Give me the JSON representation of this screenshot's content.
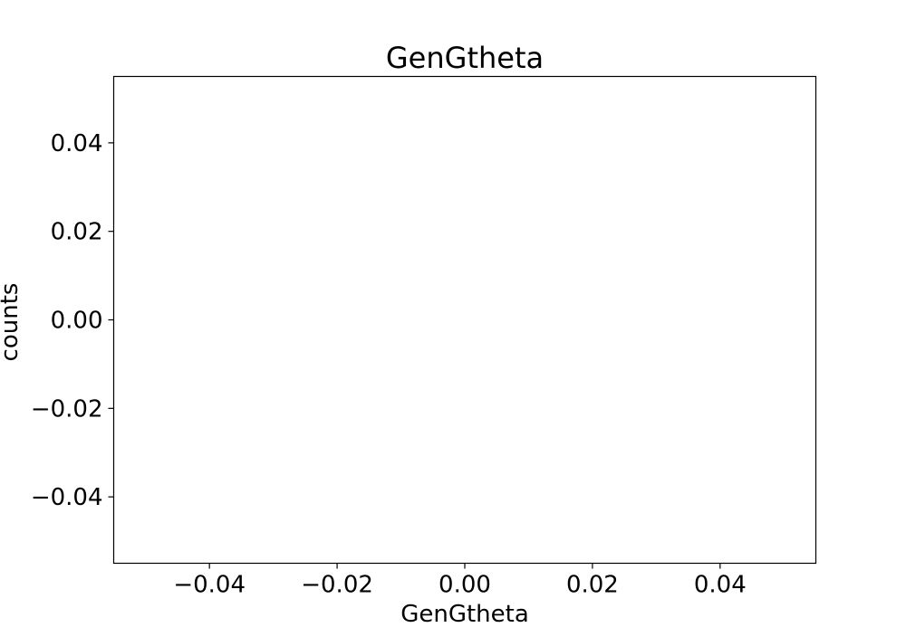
{
  "chart_data": {
    "type": "line",
    "title": "GenGtheta",
    "xlabel": "GenGtheta",
    "ylabel": "counts",
    "xlim": [
      -0.055,
      0.055
    ],
    "ylim": [
      -0.055,
      0.055
    ],
    "xticks": [
      -0.04,
      -0.02,
      0.0,
      0.02,
      0.04
    ],
    "xtick_labels": [
      "−0.04",
      "−0.02",
      "0.00",
      "0.02",
      "0.04"
    ],
    "yticks": [
      0.04,
      0.02,
      0.0,
      -0.02,
      -0.04
    ],
    "ytick_labels": [
      "0.04",
      "0.02",
      "0.00",
      "−0.02",
      "−0.04"
    ],
    "grid": false,
    "series": [
      {
        "x": [],
        "y": []
      }
    ]
  }
}
